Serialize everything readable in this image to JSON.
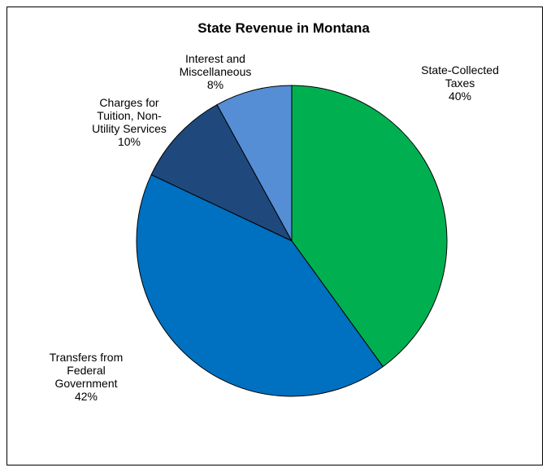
{
  "chart_data": {
    "type": "pie",
    "title": "State Revenue in Montana",
    "slices": [
      {
        "name": "State-Collected Taxes",
        "value": 40,
        "color": "#00B050",
        "label_lines": [
          "State-Collected",
          "Taxes",
          "40%"
        ]
      },
      {
        "name": "Transfers from Federal Government",
        "value": 42,
        "color": "#0070C0",
        "label_lines": [
          "Transfers from",
          "Federal",
          "Government",
          "42%"
        ]
      },
      {
        "name": "Charges for Tuition, Non-Utility Services",
        "value": 10,
        "color": "#1F497D",
        "label_lines": [
          "Charges for",
          "Tuition, Non-",
          "Utility Services",
          "10%"
        ]
      },
      {
        "name": "Interest and Miscellaneous",
        "value": 8,
        "color": "#558ED5",
        "label_lines": [
          "Interest and",
          "Miscellaneous",
          "8%"
        ]
      }
    ],
    "start_angle": "12 o'clock",
    "direction": "clockwise",
    "legend": "none"
  }
}
